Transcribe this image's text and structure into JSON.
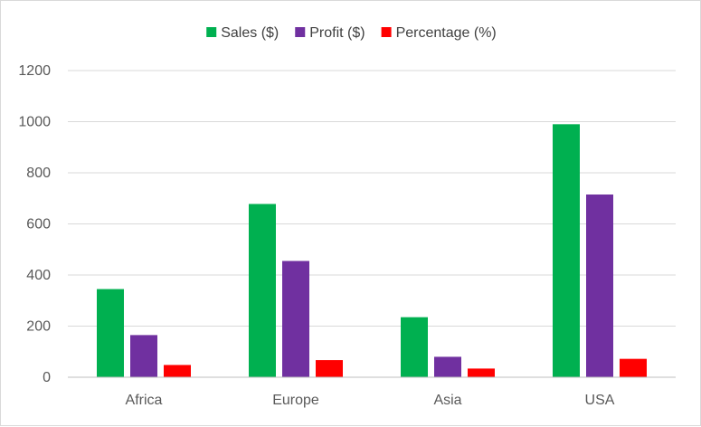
{
  "chart_data": {
    "type": "bar",
    "categories": [
      "Africa",
      "Europe",
      "Asia",
      "USA"
    ],
    "series": [
      {
        "name": "Sales ($)",
        "color": "#00b050",
        "values": [
          345,
          678,
          235,
          990
        ]
      },
      {
        "name": "Profit ($)",
        "color": "#7030a0",
        "values": [
          165,
          455,
          80,
          715
        ]
      },
      {
        "name": "Percentage (%)",
        "color": "#ff0000",
        "values": [
          48,
          67,
          34,
          72
        ]
      }
    ],
    "ylim": [
      0,
      1200
    ],
    "yticks": [
      "0",
      "200",
      "400",
      "600",
      "800",
      "1000",
      "1200"
    ],
    "grid": true,
    "legend_position": "top"
  }
}
